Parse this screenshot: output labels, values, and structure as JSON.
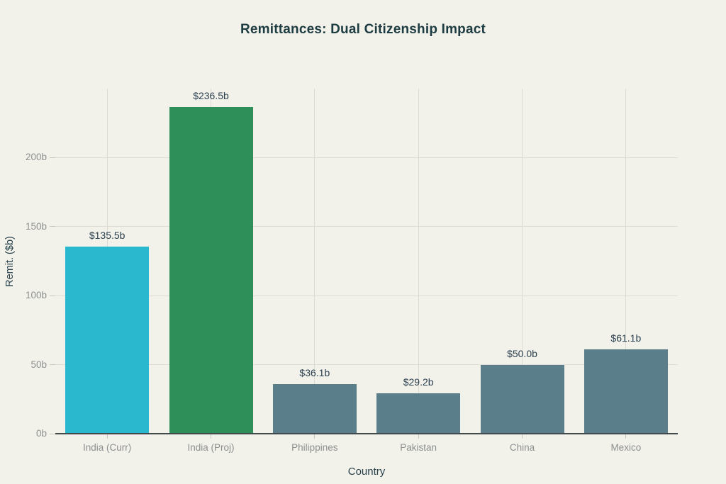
{
  "title": "Remittances: Dual Citizenship Impact",
  "colors": {
    "background": "#f2f1ea",
    "title_text": "#1d3c42",
    "value_label_text": "#2c4150",
    "axis_title_text": "#27414b",
    "tick_label_text": "#8c908f",
    "gridline": "#dedcd3",
    "axis_line": "#434a4c",
    "bar_cyan": "#2ab8ce",
    "bar_green": "#2f8f58",
    "bar_slate": "#5a7f8b"
  },
  "chart_data": {
    "type": "bar",
    "title": "Remittances: Dual Citizenship Impact",
    "xlabel": "Country",
    "ylabel": "Remit. ($b)",
    "categories": [
      "India (Curr)",
      "India (Proj)",
      "Philippines",
      "Pakistan",
      "China",
      "Mexico"
    ],
    "values": [
      135.5,
      236.5,
      36.1,
      29.2,
      50.0,
      61.1
    ],
    "value_labels": [
      "$135.5b",
      "$236.5b",
      "$36.1b",
      "$29.2b",
      "$50.0b",
      "$61.1b"
    ],
    "bar_colors": [
      "#2ab8ce",
      "#2f8f58",
      "#5a7f8b",
      "#5a7f8b",
      "#5a7f8b",
      "#5a7f8b"
    ],
    "ylim": [
      0,
      250
    ],
    "yticks": [
      0,
      50,
      100,
      150,
      200
    ],
    "ytick_labels": [
      "0b",
      "50b",
      "100b",
      "150b",
      "200b"
    ],
    "grid": true,
    "legend": "none"
  }
}
